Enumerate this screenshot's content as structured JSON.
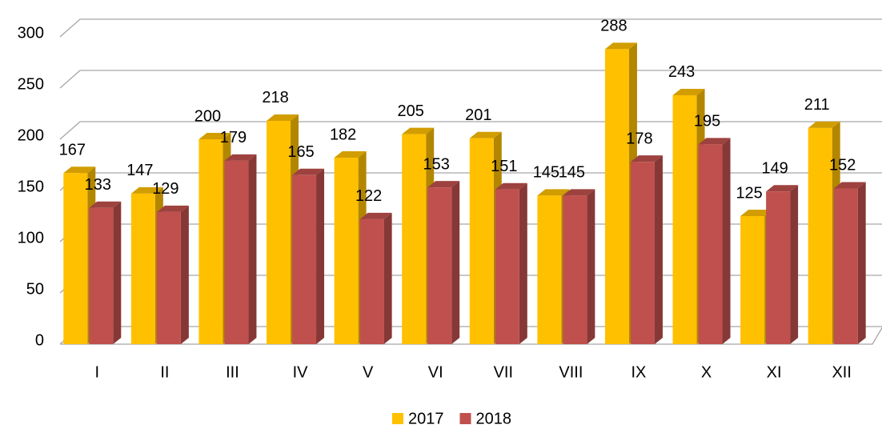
{
  "chart_data": {
    "type": "bar3d",
    "categories": [
      "I",
      "II",
      "III",
      "IV",
      "V",
      "VI",
      "VII",
      "VIII",
      "IX",
      "X",
      "XI",
      "XII"
    ],
    "series": [
      {
        "name": "2017",
        "color": "#ffc000",
        "values": [
          167,
          147,
          200,
          218,
          182,
          205,
          201,
          145,
          288,
          243,
          125,
          211
        ]
      },
      {
        "name": "2018",
        "color": "#c0504d",
        "values": [
          133,
          129,
          179,
          165,
          122,
          153,
          151,
          145,
          178,
          195,
          149,
          152
        ]
      }
    ],
    "ylim": [
      0,
      300
    ],
    "yticks": [
      0,
      50,
      100,
      150,
      200,
      250,
      300
    ],
    "grid": true,
    "legend": "bottom"
  }
}
